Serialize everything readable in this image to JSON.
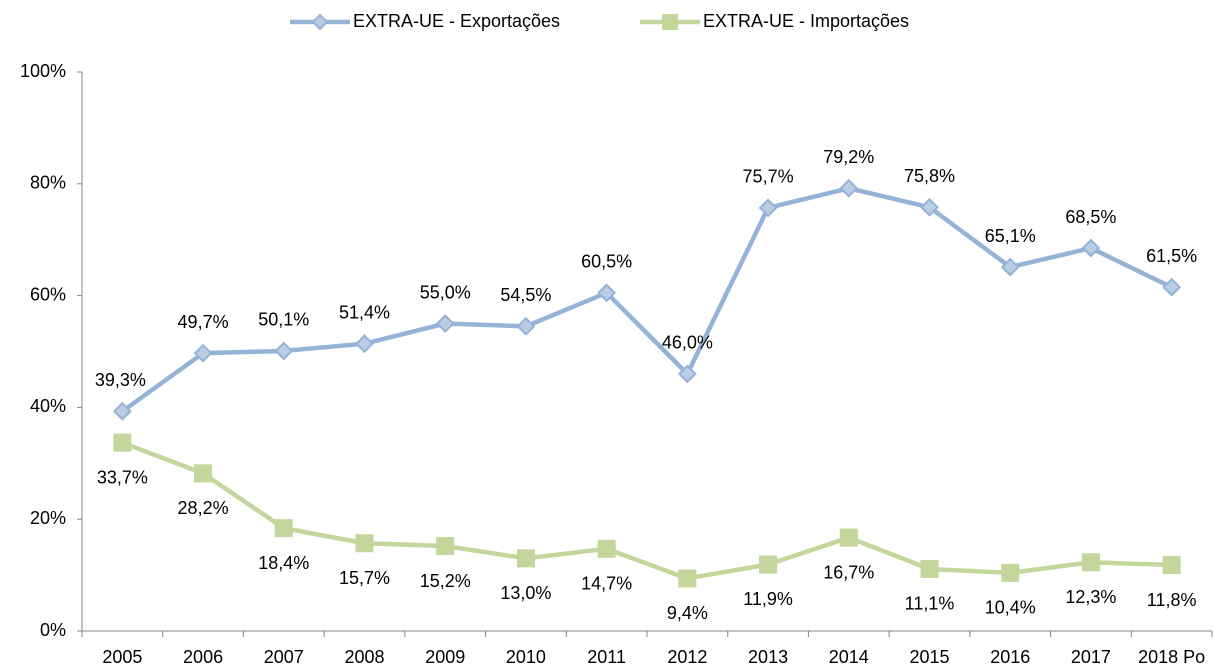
{
  "chart_data": {
    "type": "line",
    "categories": [
      "2005",
      "2006",
      "2007",
      "2008",
      "2009",
      "2010",
      "2011",
      "2012",
      "2013",
      "2014",
      "2015",
      "2016",
      "2017",
      "2018 Po"
    ],
    "series": [
      {
        "name": "EXTRA-UE - Exportações",
        "color": "#95b3d7",
        "values": [
          39.3,
          49.7,
          50.1,
          51.4,
          55.0,
          54.5,
          60.5,
          46.0,
          75.7,
          79.2,
          75.8,
          65.1,
          68.5,
          61.5
        ],
        "value_labels": [
          "39,3%",
          "49,7%",
          "50,1%",
          "51,4%",
          "55,0%",
          "54,5%",
          "60,5%",
          "46,0%",
          "75,7%",
          "79,2%",
          "75,8%",
          "65,1%",
          "68,5%",
          "61,5%"
        ]
      },
      {
        "name": "EXTRA-UE - Importações",
        "color": "#c3d69b",
        "values": [
          33.7,
          28.2,
          18.4,
          15.7,
          15.2,
          13.0,
          14.7,
          9.4,
          11.9,
          16.7,
          11.1,
          10.4,
          12.3,
          11.8
        ],
        "value_labels": [
          "33,7%",
          "28,2%",
          "18,4%",
          "15,7%",
          "15,2%",
          "13,0%",
          "14,7%",
          "9,4%",
          "11,9%",
          "16,7%",
          "11,1%",
          "10,4%",
          "12,3%",
          "11,8%"
        ]
      }
    ],
    "ylim": [
      0,
      100
    ],
    "yticks": [
      {
        "value": 0,
        "label": "0%"
      },
      {
        "value": 20,
        "label": "20%"
      },
      {
        "value": 40,
        "label": "40%"
      },
      {
        "value": 60,
        "label": "60%"
      },
      {
        "value": 80,
        "label": "80%"
      },
      {
        "value": 100,
        "label": "100%"
      }
    ],
    "legend": "top"
  }
}
